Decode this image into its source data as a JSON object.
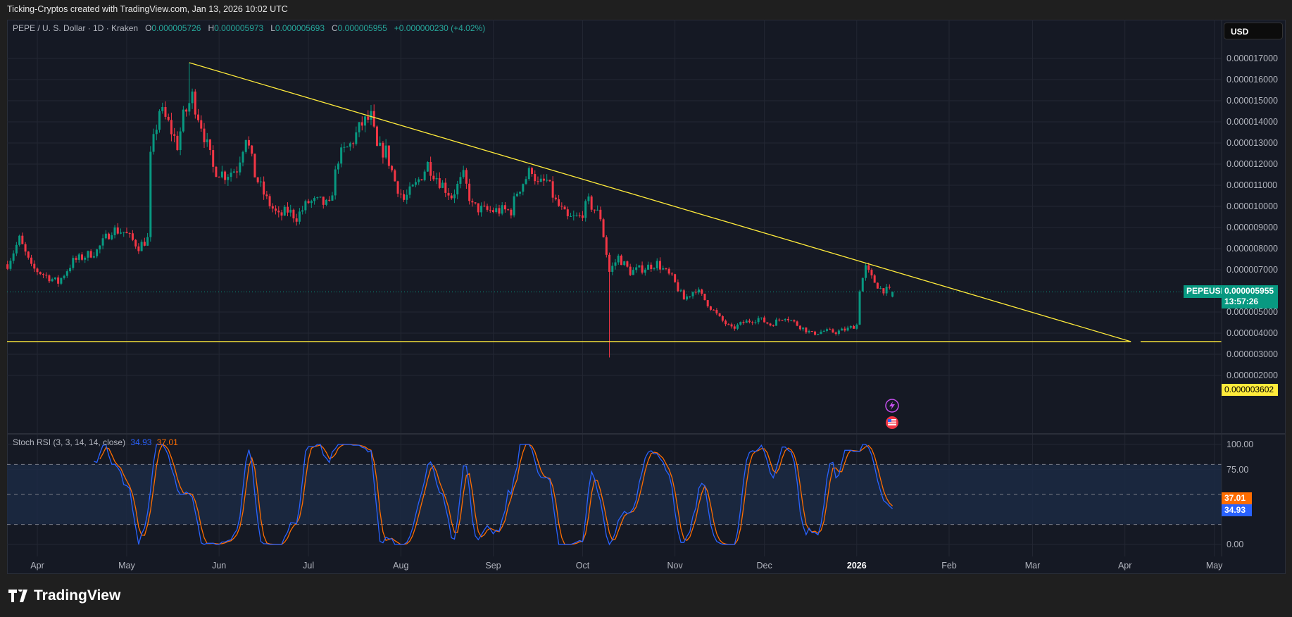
{
  "credit": "Ticking-Cryptos created with TradingView.com, Jan 13, 2026 10:02 UTC",
  "legend": {
    "symbol": "PEPE / U. S. Dollar · 1D · Kraken",
    "open_label": "O",
    "open": "0.000005726",
    "high_label": "H",
    "high": "0.000005973",
    "low_label": "L",
    "low": "0.000005693",
    "close_label": "C",
    "close": "0.000005955",
    "change": "+0.000000230 (+4.02%)"
  },
  "currency_button": "USD",
  "price_tag": {
    "symbol": "PEPEUSD",
    "price": "0.000005955",
    "countdown": "13:57:26",
    "color": "#089981"
  },
  "level_tag": {
    "price": "0.000003602",
    "color": "#ffeb3b"
  },
  "stoch_rsi": {
    "title": "Stoch RSI (3, 3, 14, 14, close)",
    "k_value": "34.93",
    "d_value": "37.01",
    "k_color": "#2962ff",
    "d_color": "#ff6d00",
    "ticks": [
      "100.00",
      "75.00",
      "0.00"
    ],
    "tick_values": [
      100,
      75,
      0
    ],
    "band": [
      20,
      80
    ],
    "mid": 50
  },
  "brand": "TradingView",
  "icons": [
    "lightning-event-icon",
    "us-flag-event-icon"
  ],
  "chart_data": {
    "type": "candlestick",
    "symbol": "PEPEUSD",
    "interval": "1D",
    "ylim": [
      1.8e-06,
      1.77e-05
    ],
    "y_ticks": [
      "0.000017000",
      "0.000016000",
      "0.000015000",
      "0.000014000",
      "0.000013000",
      "0.000012000",
      "0.000011000",
      "0.000010000",
      "0.000009000",
      "0.000008000",
      "0.000007000",
      "0.000005000",
      "0.000004000",
      "0.000003000",
      "0.000002000"
    ],
    "y_tick_values": [
      1.7e-05,
      1.6e-05,
      1.5e-05,
      1.4e-05,
      1.3e-05,
      1.2e-05,
      1.1e-05,
      1e-05,
      9e-06,
      8e-06,
      7e-06,
      5e-06,
      4e-06,
      3e-06,
      2e-06
    ],
    "x_ticks": [
      {
        "label": "Apr",
        "date": "2025-04-01"
      },
      {
        "label": "May",
        "date": "2025-05-01"
      },
      {
        "label": "Jun",
        "date": "2025-06-01"
      },
      {
        "label": "Jul",
        "date": "2025-07-01"
      },
      {
        "label": "Aug",
        "date": "2025-08-01"
      },
      {
        "label": "Sep",
        "date": "2025-09-01"
      },
      {
        "label": "Oct",
        "date": "2025-10-01"
      },
      {
        "label": "Nov",
        "date": "2025-11-01"
      },
      {
        "label": "Dec",
        "date": "2025-12-01"
      },
      {
        "label": "2026",
        "date": "2026-01-01",
        "bold": true
      },
      {
        "label": "Feb",
        "date": "2026-02-01"
      },
      {
        "label": "Mar",
        "date": "2026-03-01"
      },
      {
        "label": "Apr",
        "date": "2026-04-01"
      },
      {
        "label": "May",
        "date": "2026-05-01"
      }
    ],
    "grid": true,
    "up_color": "#089981",
    "down_color": "#f23645",
    "approx_closes": [
      [
        "2025-03-22",
        7.26e-06
      ],
      [
        "2025-03-26",
        8.45e-06
      ],
      [
        "2025-03-30",
        7.1e-06
      ],
      [
        "2025-04-08",
        6.4e-06
      ],
      [
        "2025-04-13",
        7.4e-06
      ],
      [
        "2025-04-21",
        7.9e-06
      ],
      [
        "2025-04-26",
        8.9e-06
      ],
      [
        "2025-04-30",
        8.8e-06
      ],
      [
        "2025-05-05",
        8.1e-06
      ],
      [
        "2025-05-08",
        8.45e-06
      ],
      [
        "2025-05-09",
        1.23e-05
      ],
      [
        "2025-05-12",
        1.46e-05
      ],
      [
        "2025-05-15",
        1.39e-05
      ],
      [
        "2025-05-18",
        1.29e-05
      ],
      [
        "2025-05-20",
        1.42e-05
      ],
      [
        "2025-05-23",
        1.52e-05
      ],
      [
        "2025-05-26",
        1.39e-05
      ],
      [
        "2025-05-30",
        1.18e-05
      ],
      [
        "2025-06-03",
        1.15e-05
      ],
      [
        "2025-06-07",
        1.18e-05
      ],
      [
        "2025-06-10",
        1.34e-05
      ],
      [
        "2025-06-13",
        1.15e-05
      ],
      [
        "2025-06-17",
        1.03e-05
      ],
      [
        "2025-06-21",
        9.5e-06
      ],
      [
        "2025-06-24",
        9.8e-06
      ],
      [
        "2025-06-27",
        9.5e-06
      ],
      [
        "2025-07-01",
        1.02e-05
      ],
      [
        "2025-07-05",
        1.02e-05
      ],
      [
        "2025-07-08",
        1e-05
      ],
      [
        "2025-07-11",
        1.23e-05
      ],
      [
        "2025-07-15",
        1.29e-05
      ],
      [
        "2025-07-19",
        1.39e-05
      ],
      [
        "2025-07-22",
        1.42e-05
      ],
      [
        "2025-07-24",
        1.27e-05
      ],
      [
        "2025-07-27",
        1.26e-05
      ],
      [
        "2025-07-30",
        1.12e-05
      ],
      [
        "2025-08-02",
        1.03e-05
      ],
      [
        "2025-08-06",
        1.1e-05
      ],
      [
        "2025-08-10",
        1.2e-05
      ],
      [
        "2025-08-14",
        1.12e-05
      ],
      [
        "2025-08-18",
        1.05e-05
      ],
      [
        "2025-08-22",
        1.14e-05
      ],
      [
        "2025-08-25",
        1e-05
      ],
      [
        "2025-08-29",
        9.8e-06
      ],
      [
        "2025-09-02",
        9.8e-06
      ],
      [
        "2025-09-07",
        9.8e-06
      ],
      [
        "2025-09-09",
        1.07e-05
      ],
      [
        "2025-09-14",
        1.18e-05
      ],
      [
        "2025-09-16",
        1.1e-05
      ],
      [
        "2025-09-19",
        1.12e-05
      ],
      [
        "2025-09-22",
        1.02e-05
      ],
      [
        "2025-09-26",
        9.4e-06
      ],
      [
        "2025-09-30",
        9.5e-06
      ],
      [
        "2025-10-03",
        1.02e-05
      ],
      [
        "2025-10-07",
        9.5e-06
      ],
      [
        "2025-10-10",
        6.9e-06
      ],
      [
        "2025-10-13",
        7.6e-06
      ],
      [
        "2025-10-17",
        6.9e-06
      ],
      [
        "2025-10-22",
        7.1e-06
      ],
      [
        "2025-10-26",
        7.3e-06
      ],
      [
        "2025-10-31",
        6.6e-06
      ],
      [
        "2025-11-04",
        5.6e-06
      ],
      [
        "2025-11-08",
        6.1e-06
      ],
      [
        "2025-11-12",
        5.4e-06
      ],
      [
        "2025-11-16",
        4.7e-06
      ],
      [
        "2025-11-20",
        4.2e-06
      ],
      [
        "2025-11-24",
        4.5e-06
      ],
      [
        "2025-11-29",
        4.7e-06
      ],
      [
        "2025-12-03",
        4.4e-06
      ],
      [
        "2025-12-08",
        4.8e-06
      ],
      [
        "2025-12-12",
        4.4e-06
      ],
      [
        "2025-12-17",
        3.97e-06
      ],
      [
        "2025-12-21",
        4.1e-06
      ],
      [
        "2025-12-25",
        4.05e-06
      ],
      [
        "2025-12-29",
        4.2e-06
      ],
      [
        "2026-01-01",
        4.4e-06
      ],
      [
        "2026-01-02",
        6.1e-06
      ],
      [
        "2026-01-04",
        7.1e-06
      ],
      [
        "2026-01-06",
        6.6e-06
      ],
      [
        "2026-01-09",
        6.1e-06
      ],
      [
        "2026-01-13",
        5.955e-06
      ]
    ],
    "notable_wicks": [
      {
        "date": "2025-05-22",
        "high": 1.68e-05
      },
      {
        "date": "2025-10-10",
        "low": 2.85e-06
      }
    ],
    "last_candle": {
      "date": "2026-01-13",
      "open": 5.726e-06,
      "high": 5.973e-06,
      "low": 5.693e-06,
      "close": 5.955e-06
    },
    "trendlines": [
      {
        "name": "descending-resistance",
        "color": "#ffeb3b",
        "from": [
          "2025-05-22",
          1.68e-05
        ],
        "to": [
          "2026-04-03",
          3.602e-06
        ]
      },
      {
        "name": "horizontal-support",
        "color": "#ffeb3b",
        "from": [
          "2025-03-22",
          3.602e-06
        ],
        "to": [
          "2026-04-03",
          3.602e-06
        ]
      }
    ]
  }
}
